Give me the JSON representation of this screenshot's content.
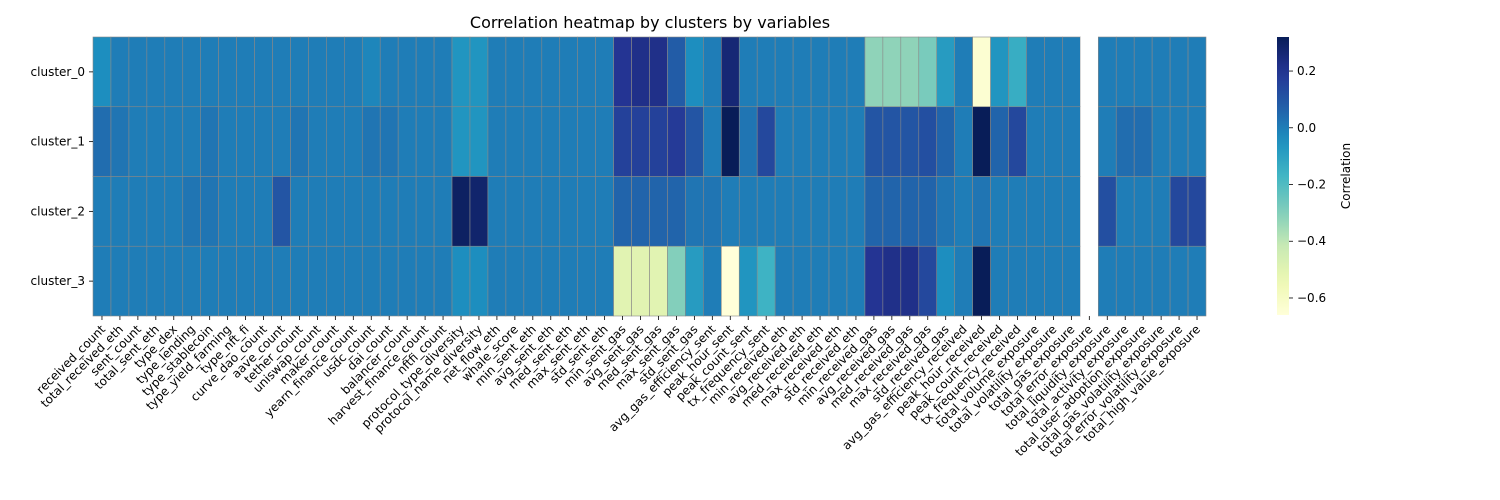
{
  "chart_data": {
    "type": "heatmap",
    "title": "Correlation heatmap by clusters by variables",
    "colorbar_label": "Correlation",
    "colormap": "YlGnBu",
    "vmin": -0.66,
    "vmax": 0.32,
    "colorbar_ticks": [
      0.2,
      0.0,
      -0.2,
      -0.4,
      -0.6
    ],
    "colorbar_tick_labels": [
      "0.2",
      "0.0",
      "−0.2",
      "−0.4",
      "−0.6"
    ],
    "missing_color": "#ffffff",
    "grid_color": "#888888",
    "rows": [
      "cluster_0",
      "cluster_1",
      "cluster_2",
      "cluster_3"
    ],
    "columns": [
      "received_count",
      "total_received_eth",
      "sent_count",
      "total_sent_eth",
      "type_dex",
      "type_lending",
      "type_stablecoin",
      "type_yield_farming",
      "type_nft_fi",
      "curve_dao_count",
      "aave_count",
      "tether_count",
      "uniswap_count",
      "maker_count",
      "yearn_finance_count",
      "usdc_count",
      "dai_count",
      "balancer_count",
      "harvest_finance_count",
      "nftfi_count",
      "protocol_type_diversity",
      "protocol_name_diversity",
      "net_flow_eth",
      "whale_score",
      "min_sent_eth",
      "avg_sent_eth",
      "med_sent_eth",
      "max_sent_eth",
      "std_sent_eth",
      "min_sent_gas",
      "avg_sent_gas",
      "med_sent_gas",
      "max_sent_gas",
      "std_sent_gas",
      "avg_gas_efficiency_sent",
      "peak_hour_sent",
      "peak_count_sent",
      "tx_frequency_sent",
      "min_received_eth",
      "avg_received_eth",
      "med_received_eth",
      "max_received_eth",
      "std_received_eth",
      "min_received_gas",
      "avg_received_gas",
      "med_received_gas",
      "max_received_gas",
      "std_received_gas",
      "avg_gas_efficiency_received",
      "peak_hour_received",
      "peak_count_received",
      "tx_frequency_received",
      "total_volume_exposure",
      "total_volatility_exposure",
      "total_gas_exposure",
      "total_error_exposure",
      "total_liquidity_exposure",
      "total_activity_exposure",
      "total_user_adoption_exposure",
      "total_gas_volatility_exposure",
      "total_error_volatility_exposure",
      "total_high_value_exposure"
    ],
    "values": [
      [
        -0.04,
        0.0,
        0.0,
        0.0,
        0.0,
        0.0,
        0.0,
        0.0,
        0.0,
        0.0,
        0.0,
        0.0,
        0.0,
        0.0,
        0.0,
        -0.02,
        0.0,
        0.0,
        0.0,
        0.0,
        -0.06,
        -0.06,
        0.0,
        0.0,
        0.0,
        0.0,
        0.0,
        0.0,
        0.0,
        0.2,
        0.22,
        0.22,
        0.08,
        -0.04,
        0.0,
        0.26,
        0.0,
        0.0,
        0.0,
        0.0,
        0.0,
        0.0,
        0.0,
        -0.32,
        -0.32,
        -0.32,
        -0.28,
        -0.08,
        0.0,
        -0.64,
        -0.06,
        -0.14,
        0.0,
        0.0,
        0.0,
        null,
        0.0,
        0.0,
        0.0,
        0.0,
        0.0,
        0.0
      ],
      [
        0.04,
        0.02,
        0.0,
        0.0,
        0.0,
        0.0,
        0.02,
        0.0,
        0.0,
        0.0,
        0.0,
        0.02,
        0.0,
        0.0,
        0.0,
        0.02,
        0.02,
        0.0,
        0.0,
        0.0,
        -0.06,
        -0.06,
        0.0,
        0.0,
        0.0,
        0.0,
        0.0,
        0.0,
        0.0,
        0.16,
        0.16,
        0.16,
        0.18,
        0.1,
        0.0,
        0.32,
        0.02,
        0.14,
        0.0,
        0.0,
        0.0,
        0.0,
        0.0,
        0.1,
        0.1,
        0.1,
        0.12,
        0.06,
        0.0,
        0.32,
        0.06,
        0.14,
        0.0,
        0.0,
        0.0,
        null,
        0.0,
        0.04,
        0.04,
        0.0,
        0.0,
        0.0
      ],
      [
        0.0,
        0.0,
        0.0,
        0.0,
        0.0,
        0.02,
        0.02,
        0.0,
        0.0,
        0.0,
        0.1,
        0.0,
        0.0,
        0.0,
        0.0,
        0.0,
        0.0,
        0.0,
        0.0,
        0.0,
        0.3,
        0.28,
        0.0,
        0.0,
        0.0,
        0.0,
        0.0,
        0.0,
        0.0,
        0.06,
        0.06,
        0.06,
        0.06,
        0.02,
        0.02,
        0.0,
        0.0,
        0.0,
        0.0,
        0.0,
        0.0,
        0.0,
        0.0,
        0.06,
        0.06,
        0.06,
        0.06,
        0.02,
        0.0,
        0.02,
        0.0,
        0.0,
        0.0,
        0.0,
        0.0,
        null,
        0.12,
        0.0,
        0.0,
        0.0,
        0.14,
        0.14
      ],
      [
        0.0,
        0.0,
        0.0,
        0.0,
        0.0,
        0.0,
        0.0,
        0.0,
        0.0,
        0.0,
        0.0,
        0.0,
        0.0,
        0.0,
        0.0,
        0.0,
        0.0,
        0.0,
        0.0,
        0.0,
        -0.04,
        -0.04,
        0.0,
        0.0,
        0.0,
        0.0,
        0.0,
        0.0,
        0.0,
        -0.5,
        -0.5,
        -0.5,
        -0.3,
        -0.08,
        0.0,
        -0.66,
        -0.06,
        -0.16,
        0.0,
        0.0,
        0.0,
        0.0,
        0.0,
        0.2,
        0.22,
        0.22,
        0.14,
        -0.04,
        0.0,
        0.32,
        0.0,
        0.0,
        0.0,
        0.0,
        0.0,
        null,
        0.0,
        0.0,
        0.0,
        0.0,
        0.0,
        0.0
      ]
    ]
  }
}
